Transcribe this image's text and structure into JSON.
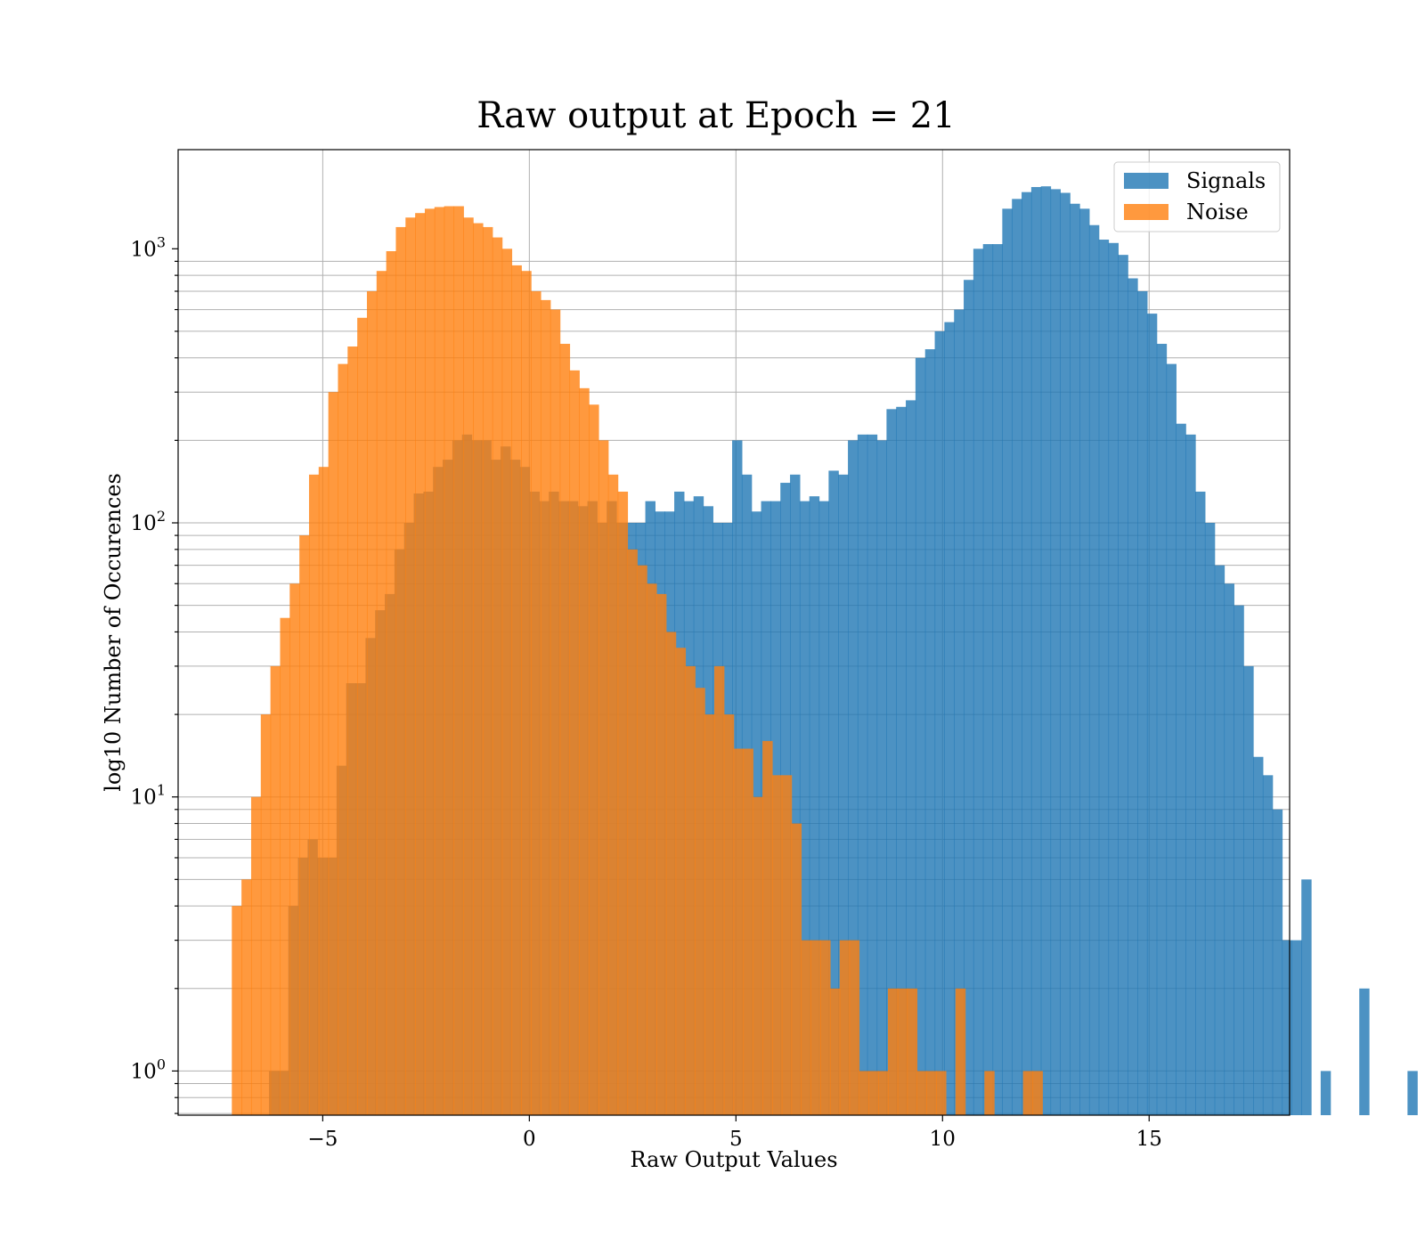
{
  "chart_data": {
    "type": "bar",
    "title": "Raw output at Epoch = 21",
    "xlabel": "Raw Output Values",
    "ylabel": "log10 Number of Occurences",
    "xlim": [
      -8.5,
      18.4
    ],
    "ylim": [
      0.69,
      2300
    ],
    "yscale": "log",
    "x_ticks": [
      {
        "value": -5,
        "label": "−5"
      },
      {
        "value": 0,
        "label": "0"
      },
      {
        "value": 5,
        "label": "5"
      },
      {
        "value": 10,
        "label": "10"
      },
      {
        "value": 15,
        "label": "15"
      }
    ],
    "y_ticks": [
      {
        "value": 1,
        "base": "10",
        "exp": "0"
      },
      {
        "value": 10,
        "base": "10",
        "exp": "1"
      },
      {
        "value": 100,
        "base": "10",
        "exp": "2"
      },
      {
        "value": 1000,
        "base": "10",
        "exp": "3"
      }
    ],
    "grid": true,
    "legend": {
      "position": "top-right"
    },
    "series": [
      {
        "name": "Signals",
        "color": "#1f77b4",
        "opacity": 0.8,
        "bin_start": -6.3,
        "bin_width": 0.2335,
        "counts": [
          1,
          1,
          4,
          6,
          7,
          6,
          6,
          13,
          26,
          26,
          38,
          48,
          55,
          80,
          100,
          128,
          130,
          160,
          170,
          200,
          210,
          200,
          200,
          170,
          190,
          170,
          160,
          130,
          120,
          130,
          120,
          120,
          115,
          120,
          100,
          120,
          100,
          100,
          100,
          120,
          110,
          110,
          130,
          120,
          125,
          115,
          100,
          100,
          200,
          150,
          110,
          120,
          120,
          140,
          150,
          120,
          125,
          120,
          155,
          150,
          200,
          210,
          210,
          200,
          260,
          265,
          280,
          400,
          430,
          500,
          540,
          600,
          770,
          1000,
          1040,
          1040,
          1400,
          1520,
          1610,
          1680,
          1690,
          1650,
          1600,
          1460,
          1400,
          1220,
          1080,
          1050,
          950,
          780,
          700,
          580,
          450,
          380,
          230,
          210,
          130,
          100,
          70,
          60,
          50,
          30,
          14,
          12,
          9,
          3,
          3,
          5,
          0,
          1,
          0,
          0,
          0,
          2,
          0,
          0,
          0,
          0,
          1
        ]
      },
      {
        "name": "Noise",
        "color": "#ff7f0e",
        "opacity": 0.8,
        "bin_start": -7.2,
        "bin_width": 0.2335,
        "counts": [
          4,
          5,
          10,
          20,
          30,
          45,
          60,
          90,
          150,
          160,
          300,
          380,
          440,
          560,
          700,
          830,
          980,
          1200,
          1300,
          1350,
          1400,
          1420,
          1430,
          1430,
          1300,
          1240,
          1200,
          1100,
          1000,
          870,
          830,
          700,
          650,
          600,
          450,
          360,
          310,
          270,
          200,
          150,
          130,
          80,
          70,
          60,
          55,
          40,
          35,
          30,
          25,
          20,
          30,
          20,
          15,
          15,
          10,
          16,
          12,
          12,
          8,
          3,
          3,
          3,
          2,
          3,
          3,
          1,
          1,
          1,
          2,
          2,
          2,
          1,
          1,
          1,
          0,
          2,
          0,
          0,
          1,
          0,
          0,
          0,
          1,
          1,
          0
        ]
      }
    ]
  }
}
